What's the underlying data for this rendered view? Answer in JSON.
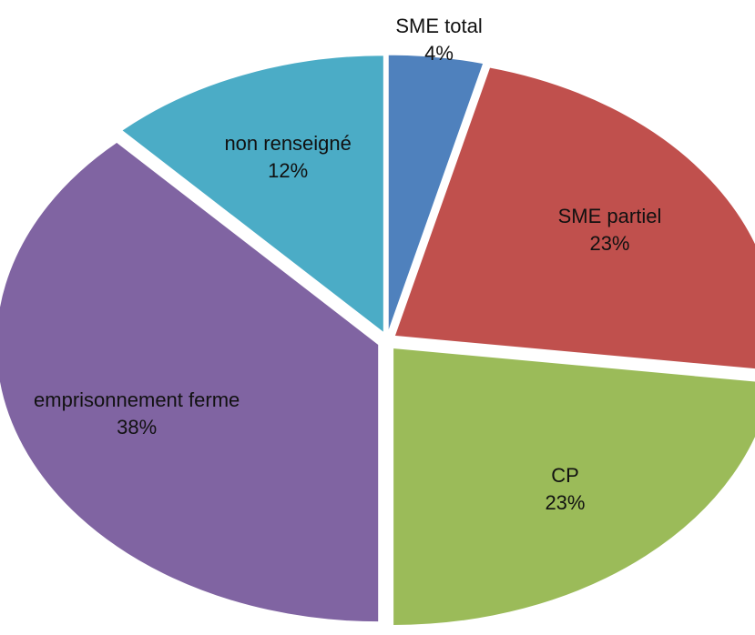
{
  "chart_data": {
    "type": "pie",
    "categories": [
      "SME total",
      "SME partiel",
      "CP",
      "emprisonnement ferme",
      "non renseigné"
    ],
    "values": [
      4,
      23,
      23,
      38,
      12
    ],
    "value_labels": [
      "4%",
      "23%",
      "23%",
      "38%",
      "12%"
    ],
    "colors": [
      "#4f81bd",
      "#c0504d",
      "#9bbb59",
      "#8064a2",
      "#4bacc6"
    ]
  }
}
